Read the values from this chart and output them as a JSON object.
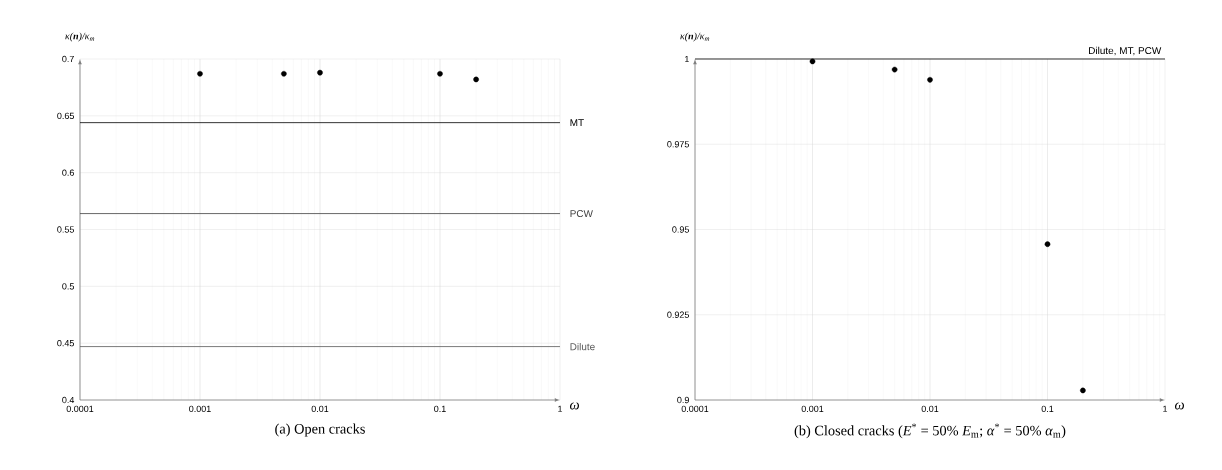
{
  "chart_data": [
    {
      "type": "scatter",
      "title": "(a) Open cracks",
      "xlabel": "ω",
      "ylabel": "κ(**n**)/κ$_{m}$",
      "x": [
        0.001,
        0.005,
        0.01,
        0.1,
        0.2
      ],
      "values": [
        0.687,
        0.687,
        0.688,
        0.687,
        0.682
      ],
      "color": "#000000",
      "xlim": [
        0.0001,
        1
      ],
      "ylim": [
        0.4,
        0.7
      ],
      "xticks": [
        0.0001,
        0.001,
        0.01,
        0.1,
        1
      ],
      "yticks": [
        0.4,
        0.45,
        0.5,
        0.55,
        0.6,
        0.65,
        0.7
      ],
      "log": "x",
      "grid": true,
      "marker": "circle",
      "ref_lines": [
        {
          "axis": "y",
          "value": 0.644,
          "label": "MT",
          "color": "#000000"
        },
        {
          "axis": "y",
          "value": 0.564,
          "label": "PCW",
          "color": "#404040"
        },
        {
          "axis": "y",
          "value": 0.447,
          "label": "Dilute",
          "color": "#595959"
        }
      ]
    },
    {
      "type": "scatter",
      "title": "(b) Closed cracks (*E*$^{*}$ = 50% *E*$_{m}$; *α*$^{*}$ = 50% *α*$_{m}$)",
      "xlabel": "ω",
      "ylabel": "κ(**n**)/κ$_{m}$",
      "x": [
        0.001,
        0.005,
        0.01,
        0.1,
        0.2
      ],
      "values": [
        0.9993,
        0.9969,
        0.9939,
        0.9457,
        0.9028
      ],
      "color": "#000000",
      "xlim": [
        0.0001,
        1
      ],
      "ylim": [
        0.9,
        1
      ],
      "xticks": [
        0.0001,
        0.001,
        0.01,
        0.1,
        1
      ],
      "yticks": [
        0.9,
        0.925,
        0.95,
        0.975,
        1
      ],
      "log": "x",
      "grid": true,
      "marker": "circle",
      "ref_lines": [
        {
          "axis": "y",
          "value": 1,
          "label": "Dilute, MT, PCW",
          "color": "#000000"
        }
      ]
    }
  ]
}
